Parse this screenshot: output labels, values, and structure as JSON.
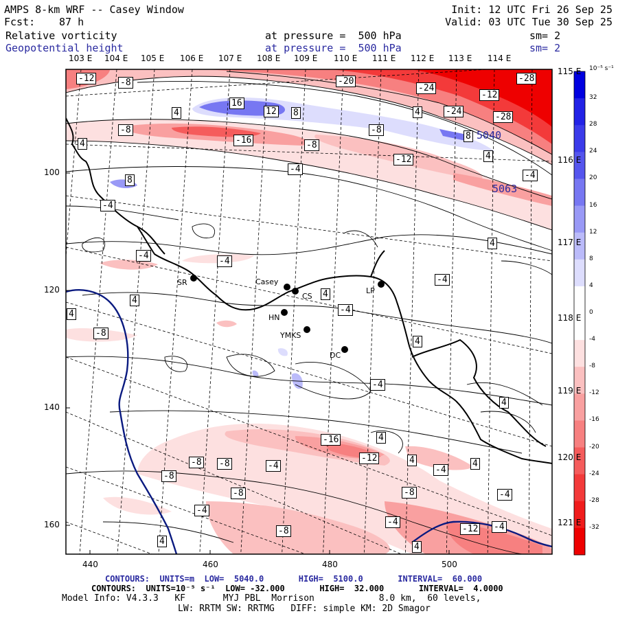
{
  "header": {
    "model_title": "AMPS 8-km WRF -- Casey Window",
    "forecast_label": "Fcst:",
    "forecast_hours": "87 h",
    "init": "Init: 12 UTC Fri 26 Sep 25",
    "valid": "Valid: 03 UTC Tue 30 Sep 25",
    "field1": {
      "name": "Relative vorticity",
      "level": "at pressure =  500 hPa",
      "smoothing": "sm= 2"
    },
    "field2": {
      "name": "Geopotential height",
      "level": "at pressure =  500 hPa",
      "smoothing": "sm= 2"
    }
  },
  "lon_labels_top": [
    "103 E",
    "104 E",
    "105 E",
    "106 E",
    "107 E",
    "108 E",
    "109 E",
    "110 E",
    "111 E",
    "112 E",
    "113 E",
    "114 E"
  ],
  "lat_labels_right": [
    "115 E",
    "116 E",
    "117 E",
    "118 E",
    "119 E",
    "120 E",
    "121 E"
  ],
  "y_axis_ticks": [
    "100",
    "120",
    "140",
    "160"
  ],
  "x_axis_ticks": [
    "440",
    "460",
    "480",
    "500"
  ],
  "colorbar": {
    "unit": "10⁻⁵ s⁻¹",
    "levels": [
      "32",
      "28",
      "24",
      "20",
      "16",
      "12",
      "8",
      "4",
      "0",
      "-4",
      "-8",
      "-12",
      "-16",
      "-20",
      "-24",
      "-28",
      "-32"
    ],
    "colors_top_to_bottom": [
      "#0000e0",
      "#2222e6",
      "#3b3bea",
      "#5555ee",
      "#7777f2",
      "#9999f6",
      "#bbbbfa",
      "#ddddfd",
      "#ffffff",
      "#ffffff",
      "#fde0e0",
      "#fbc0c0",
      "#f9a0a0",
      "#f78080",
      "#f55c5c",
      "#f33a3a",
      "#f01c1c",
      "#ee0000"
    ]
  },
  "stations": [
    "SR",
    "Casey",
    "CS",
    "LP",
    "HN",
    "YMKS",
    "DC"
  ],
  "contour_labels": [
    "-12",
    "-8",
    "-20",
    "-24",
    "-12",
    "-28",
    "4",
    "16",
    "12",
    "8",
    "4",
    "-24",
    "-28",
    "-8",
    "-16",
    "-8",
    "-8",
    "8",
    "4",
    "4",
    "-4",
    "-12",
    "5063",
    "-4",
    "8",
    "-4",
    "4",
    "-4",
    "-4",
    "-4",
    "4",
    "4",
    "4",
    "-4",
    "4",
    "-8",
    "4",
    "-4",
    "4",
    "-16",
    "-12",
    "4",
    "4",
    "-4",
    "-8",
    "-8",
    "-4",
    "-8",
    "-8",
    "-4",
    "-4",
    "-8",
    "-8",
    "-4",
    "-12",
    "-4",
    "4",
    "5040",
    "4"
  ],
  "height_labels": [
    "5063",
    "5040"
  ],
  "footer": {
    "line1": "CONTOURS:  UNITS=m  LOW=  5040.0       HIGH=  5100.0       INTERVAL=  60.000",
    "line2": "CONTOURS:  UNITS=10⁻⁵ s⁻¹  LOW= -32.000       HIGH=  32.000       INTERVAL=  4.0000",
    "line3": "Model Info: V4.3.3   KF       MYJ PBL  Morrison            8.0 km,  60 levels,",
    "line4": "LW: RRTM SW: RRTMG   DIFF: simple KM: 2D Smagor"
  }
}
